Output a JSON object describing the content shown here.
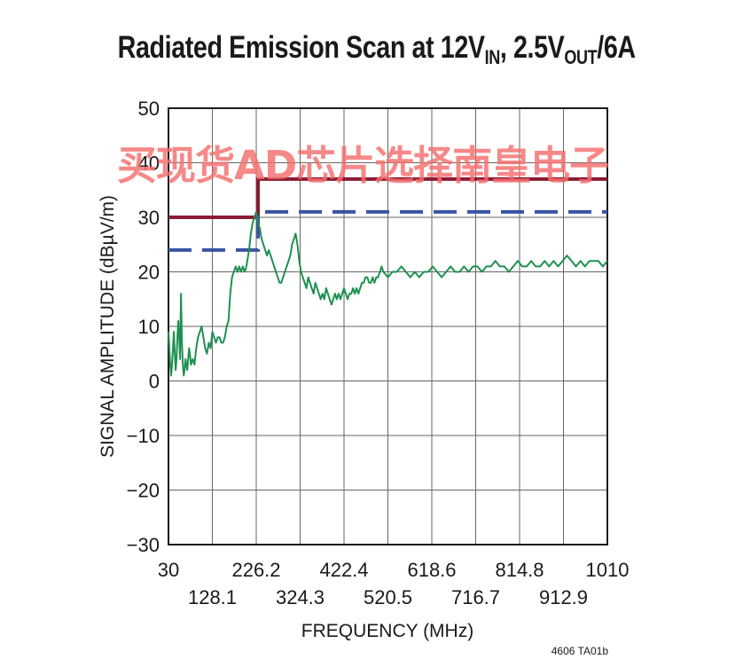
{
  "title": {
    "part1": "Radiated Emission Scan at 12V",
    "sub1": "IN",
    "part2": ", 2.5V",
    "sub2": "OUT",
    "part3": "/6A"
  },
  "figure_code": "4606 TA01b",
  "watermark": "买现货AD芯片选择南皇电子",
  "chart_data": {
    "type": "line",
    "xlabel": "FREQUENCY (MHz)",
    "ylabel": "SIGNAL AMPLITUDE (dBµV/m)",
    "xlim": [
      30,
      1010
    ],
    "ylim": [
      -30,
      50
    ],
    "x_ticks_row1": [
      "30",
      "226.2",
      "422.4",
      "618.6",
      "814.8",
      "1010"
    ],
    "x_ticks_row2": [
      "128.1",
      "324.3",
      "520.5",
      "716.7",
      "912.9"
    ],
    "y_ticks": [
      "50",
      "40",
      "30",
      "20",
      "10",
      "0",
      "−10",
      "−20",
      "−30"
    ],
    "grid": true,
    "colors": {
      "emission": "#1e9150",
      "limit_a": "#8b1a32",
      "limit_b": "#3a54a4",
      "grid": "#666666"
    },
    "series": [
      {
        "role": "emission",
        "x": [
          30,
          32,
          34,
          36,
          38,
          40,
          42,
          44,
          46,
          48,
          50,
          52,
          54,
          56,
          58,
          60,
          62,
          64,
          66,
          68,
          70,
          72,
          74,
          76,
          78,
          80,
          84,
          88,
          92,
          96,
          100,
          104,
          108,
          112,
          116,
          120,
          124,
          128,
          132,
          136,
          140,
          144,
          148,
          152,
          156,
          160,
          164,
          168,
          172,
          176,
          180,
          184,
          188,
          192,
          196,
          200,
          204,
          206,
          210,
          214,
          218,
          222,
          226,
          230,
          234,
          238,
          242,
          246,
          250,
          254,
          258,
          262,
          266,
          270,
          274,
          278,
          282,
          286,
          290,
          294,
          298,
          302,
          306,
          310,
          314,
          318,
          322,
          326,
          330,
          334,
          338,
          342,
          346,
          350,
          354,
          358,
          362,
          366,
          370,
          374,
          378,
          382,
          386,
          390,
          394,
          398,
          402,
          406,
          410,
          414,
          418,
          422,
          426,
          430,
          434,
          438,
          442,
          446,
          450,
          454,
          458,
          462,
          466,
          470,
          474,
          478,
          482,
          486,
          490,
          494,
          498,
          502,
          506,
          510,
          520,
          530,
          540,
          550,
          560,
          570,
          580,
          590,
          600,
          610,
          620,
          630,
          640,
          650,
          660,
          670,
          680,
          690,
          700,
          710,
          720,
          730,
          740,
          750,
          760,
          770,
          780,
          790,
          800,
          810,
          820,
          830,
          840,
          850,
          860,
          870,
          880,
          890,
          900,
          910,
          920,
          930,
          940,
          950,
          960,
          970,
          980,
          990,
          1000,
          1010
        ],
        "y": [
          9,
          6,
          3,
          1,
          3,
          6,
          9,
          5,
          2,
          4,
          8,
          11,
          8,
          4,
          16,
          7,
          3,
          1,
          2,
          4,
          3,
          2,
          4,
          6,
          5,
          3,
          4,
          3,
          6,
          8,
          9,
          10,
          8,
          6,
          5,
          7,
          6,
          9,
          8,
          7,
          8,
          8,
          7,
          7,
          8,
          10,
          11,
          16,
          19,
          20,
          21,
          20,
          21,
          20,
          21,
          20,
          21,
          22,
          24,
          27,
          29,
          30,
          31,
          29,
          28,
          26,
          25,
          24,
          23,
          24,
          23,
          22,
          21,
          20,
          19,
          18,
          18,
          19,
          20,
          21,
          22,
          23,
          25,
          26,
          27,
          25,
          22,
          20,
          19,
          18,
          17,
          19,
          18,
          17,
          16,
          18,
          17,
          16,
          15,
          16,
          15,
          17,
          16,
          15,
          14,
          15,
          16,
          15,
          16,
          15,
          16,
          17,
          16,
          15,
          16,
          16,
          17,
          16,
          17,
          16,
          17,
          18,
          18,
          19,
          19,
          18,
          18,
          19,
          18,
          19,
          19,
          20,
          21,
          20,
          19,
          20,
          20,
          21,
          20,
          19,
          20,
          19,
          20,
          20,
          21,
          20,
          19,
          20,
          21,
          20,
          20,
          21,
          20,
          21,
          21,
          20,
          21,
          21,
          22,
          21,
          21,
          20,
          21,
          22,
          21,
          21,
          22,
          21,
          21,
          22,
          21,
          22,
          21,
          22,
          23,
          22,
          21,
          22,
          21,
          22,
          22,
          22,
          21,
          22
        ]
      },
      {
        "role": "limit_a",
        "x": [
          30,
          230,
          230,
          1010
        ],
        "y": [
          30,
          30,
          37,
          37
        ]
      },
      {
        "role": "limit_b",
        "x": [
          30,
          230,
          230,
          1010
        ],
        "y": [
          24,
          24,
          31,
          31
        ]
      }
    ]
  }
}
